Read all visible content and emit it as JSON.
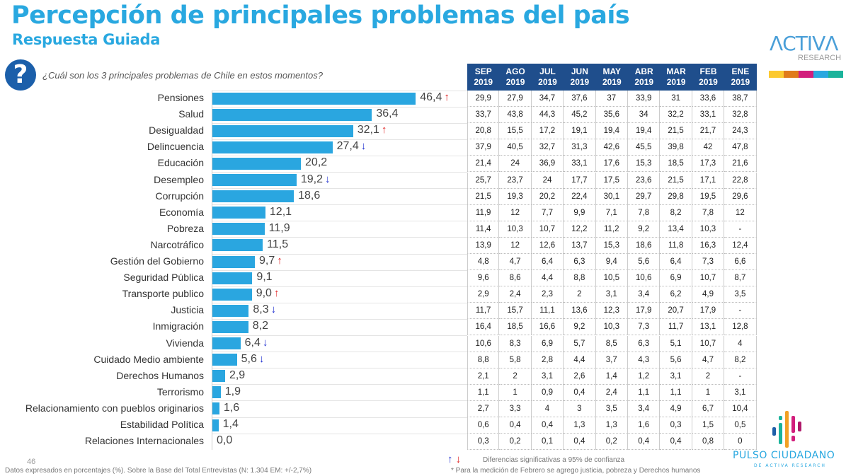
{
  "header": {
    "title": "Percepción de principales problemas del país",
    "subtitle": "Respuesta Guiada",
    "question": "¿Cuál son los 3 principales problemas de Chile en estos momentos?",
    "question_icon": "question-circle-icon"
  },
  "logos": {
    "activa": "ACTIVA RESEARCH",
    "pulso": "PULSO CIUDADANO",
    "pulso_sub": "DE ACTIVA RESEARCH",
    "color_strip": [
      "#fcc92f",
      "#e07b1a",
      "#d21e7c",
      "#29a8e0",
      "#1bb39b"
    ]
  },
  "chart_data": {
    "type": "bar",
    "orientation": "horizontal",
    "title": "",
    "xlabel": "",
    "ylabel": "",
    "xlim": [
      0,
      50
    ],
    "grid": true,
    "bar_color": "#2aa6e0",
    "up_color": "#e02020",
    "down_color": "#2030d0",
    "categories": [
      "Pensiones",
      "Salud",
      "Desigualdad",
      "Delincuencia",
      "Educación",
      "Desempleo",
      "Corrupción",
      "Economía",
      "Pobreza",
      "Narcotráfico",
      "Gestión del Gobierno",
      "Seguridad Pública",
      "Transporte publico",
      "Justicia",
      "Inmigración",
      "Vivienda",
      "Cuidado Medio ambiente",
      "Derechos Humanos",
      "Terrorismo",
      "Relacionamiento con pueblos originarios",
      "Estabilidad Política",
      "Relaciones Internacionales"
    ],
    "values": [
      46.4,
      36.4,
      32.1,
      27.4,
      20.2,
      19.2,
      18.6,
      12.1,
      11.9,
      11.5,
      9.7,
      9.1,
      9.0,
      8.3,
      8.2,
      6.4,
      5.6,
      2.9,
      1.9,
      1.6,
      1.4,
      0.0
    ],
    "value_labels": [
      "46,4",
      "36,4",
      "32,1",
      "27,4",
      "20,2",
      "19,2",
      "18,6",
      "12,1",
      "11,9",
      "11,5",
      "9,7",
      "9,1",
      "9,0",
      "8,3",
      "8,2",
      "6,4",
      "5,6",
      "2,9",
      "1,9",
      "1,6",
      "1,4",
      "0,0"
    ],
    "significance": [
      "up",
      "",
      "up",
      "down",
      "",
      "down",
      "",
      "",
      "",
      "",
      "up",
      "",
      "up",
      "down",
      "",
      "down",
      "down",
      "",
      "",
      "",
      "",
      ""
    ]
  },
  "table": {
    "columns": [
      [
        "SEP",
        "2019"
      ],
      [
        "AGO",
        "2019"
      ],
      [
        "JUL",
        "2019"
      ],
      [
        "JUN",
        "2019"
      ],
      [
        "MAY",
        "2019"
      ],
      [
        "ABR",
        "2019"
      ],
      [
        "MAR",
        "2019"
      ],
      [
        "FEB",
        "2019"
      ],
      [
        "ENE",
        "2019"
      ]
    ],
    "rows": [
      [
        "29,9",
        "27,9",
        "34,7",
        "37,6",
        "37",
        "33,9",
        "31",
        "33,6",
        "38,7"
      ],
      [
        "33,7",
        "43,8",
        "44,3",
        "45,2",
        "35,6",
        "34",
        "32,2",
        "33,1",
        "32,8"
      ],
      [
        "20,8",
        "15,5",
        "17,2",
        "19,1",
        "19,4",
        "19,4",
        "21,5",
        "21,7",
        "24,3"
      ],
      [
        "37,9",
        "40,5",
        "32,7",
        "31,3",
        "42,6",
        "45,5",
        "39,8",
        "42",
        "47,8"
      ],
      [
        "21,4",
        "24",
        "36,9",
        "33,1",
        "17,6",
        "15,3",
        "18,5",
        "17,3",
        "21,6"
      ],
      [
        "25,7",
        "23,7",
        "24",
        "17,7",
        "17,5",
        "23,6",
        "21,5",
        "17,1",
        "22,8"
      ],
      [
        "21,5",
        "19,3",
        "20,2",
        "22,4",
        "30,1",
        "29,7",
        "29,8",
        "19,5",
        "29,6"
      ],
      [
        "11,9",
        "12",
        "7,7",
        "9,9",
        "7,1",
        "7,8",
        "8,2",
        "7,8",
        "12"
      ],
      [
        "11,4",
        "10,3",
        "10,7",
        "12,2",
        "11,2",
        "9,2",
        "13,4",
        "10,3",
        "-"
      ],
      [
        "13,9",
        "12",
        "12,6",
        "13,7",
        "15,3",
        "18,6",
        "11,8",
        "16,3",
        "12,4"
      ],
      [
        "4,8",
        "4,7",
        "6,4",
        "6,3",
        "9,4",
        "5,6",
        "6,4",
        "7,3",
        "6,6"
      ],
      [
        "9,6",
        "8,6",
        "4,4",
        "8,8",
        "10,5",
        "10,6",
        "6,9",
        "10,7",
        "8,7"
      ],
      [
        "2,9",
        "2,4",
        "2,3",
        "2",
        "3,1",
        "3,4",
        "6,2",
        "4,9",
        "3,5"
      ],
      [
        "11,7",
        "15,7",
        "11,1",
        "13,6",
        "12,3",
        "17,9",
        "20,7",
        "17,9",
        "-"
      ],
      [
        "16,4",
        "18,5",
        "16,6",
        "9,2",
        "10,3",
        "7,3",
        "11,7",
        "13,1",
        "12,8"
      ],
      [
        "10,6",
        "8,3",
        "6,9",
        "5,7",
        "8,5",
        "6,3",
        "5,1",
        "10,7",
        "4"
      ],
      [
        "8,8",
        "5,8",
        "2,8",
        "4,4",
        "3,7",
        "4,3",
        "5,6",
        "4,7",
        "8,2"
      ],
      [
        "2,1",
        "2",
        "3,1",
        "2,6",
        "1,4",
        "1,2",
        "3,1",
        "2",
        "-"
      ],
      [
        "1,1",
        "1",
        "0,9",
        "0,4",
        "2,4",
        "1,1",
        "1,1",
        "1",
        "3,1"
      ],
      [
        "2,7",
        "3,3",
        "4",
        "3",
        "3,5",
        "3,4",
        "4,9",
        "6,7",
        "10,4"
      ],
      [
        "0,6",
        "0,4",
        "0,4",
        "1,3",
        "1,3",
        "1,6",
        "0,3",
        "1,5",
        "0,5"
      ],
      [
        "0,3",
        "0,2",
        "0,1",
        "0,4",
        "0,2",
        "0,4",
        "0,4",
        "0,8",
        "0"
      ]
    ]
  },
  "footer": {
    "page_number": "46",
    "base_note": "Datos expresados en porcentajes (%). Sobre la Base del Total Entrevistas (N: 1.304 EM: +/-2,7%)",
    "legend_note": "Diferencias  significativas a 95% de confianza",
    "february_note": "* Para la medición de Febrero se agrego justicia, pobreza y Derechos humanos",
    "up_arrow": "↑",
    "down_arrow": "↓"
  }
}
